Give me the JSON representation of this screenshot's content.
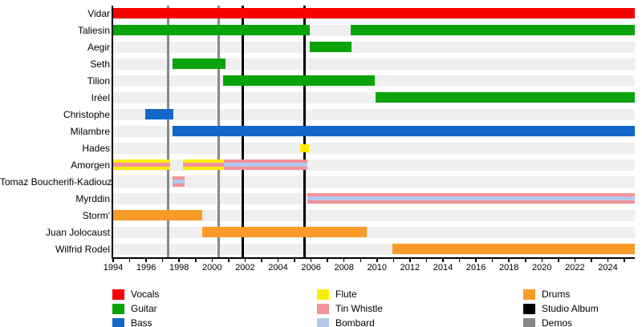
{
  "colors": {
    "vocals": "#f40202",
    "guitar": "#0ba30b",
    "bass": "#1267c9",
    "flute": "#fcee00",
    "tin_whistle": "#f39298",
    "bombard": "#b3c8ef",
    "drums": "#f89b28",
    "studio_album": "#000000",
    "demos": "#888888",
    "row_track": "#efefef",
    "axis": "#000000"
  },
  "chart_data": {
    "type": "timeline",
    "x_axis": {
      "start": 1994,
      "end": 2025.63,
      "tick_every": 1,
      "label_every": 2,
      "labels": [
        "1994",
        "1996",
        "1998",
        "2000",
        "2002",
        "2004",
        "2006",
        "2008",
        "2010",
        "2012",
        "2014",
        "2016",
        "2018",
        "2020",
        "2022",
        "2024"
      ]
    },
    "members": [
      {
        "name": "Vidar",
        "bars": [
          {
            "instruments": [
              "vocals"
            ],
            "from": 1994.0,
            "to": 2025.63
          }
        ]
      },
      {
        "name": "Taliesin",
        "bars": [
          {
            "instruments": [
              "guitar"
            ],
            "from": 1994.0,
            "to": 2005.9
          },
          {
            "instruments": [
              "guitar"
            ],
            "from": 2008.4,
            "to": 2025.63
          }
        ]
      },
      {
        "name": "Aegir",
        "bars": [
          {
            "instruments": [
              "guitar"
            ],
            "from": 2005.9,
            "to": 2008.45
          }
        ]
      },
      {
        "name": "Seth",
        "bars": [
          {
            "instruments": [
              "guitar"
            ],
            "from": 1997.6,
            "to": 2000.8
          }
        ]
      },
      {
        "name": "Tilion",
        "bars": [
          {
            "instruments": [
              "guitar"
            ],
            "from": 2000.65,
            "to": 2009.85
          }
        ]
      },
      {
        "name": "Iréel",
        "bars": [
          {
            "instruments": [
              "guitar"
            ],
            "from": 2009.9,
            "to": 2025.63
          }
        ]
      },
      {
        "name": "Christophe",
        "bars": [
          {
            "instruments": [
              "bass"
            ],
            "from": 1995.95,
            "to": 1997.65
          }
        ]
      },
      {
        "name": "Milambre",
        "bars": [
          {
            "instruments": [
              "bass"
            ],
            "from": 1997.6,
            "to": 2025.63
          }
        ]
      },
      {
        "name": "Hades",
        "bars": [
          {
            "instruments": [
              "flute"
            ],
            "from": 2005.35,
            "to": 2005.85,
            "height": 10
          }
        ]
      },
      {
        "name": "Amorgen",
        "bars": [
          {
            "instruments": [
              "flute",
              "tin_whistle"
            ],
            "from": 1994.0,
            "to": 1997.45
          },
          {
            "instruments": [
              "flute",
              "tin_whistle"
            ],
            "from": 1998.25,
            "to": 2000.7
          },
          {
            "instruments": [
              "tin_whistle",
              "bombard"
            ],
            "from": 2000.7,
            "to": 2005.8
          }
        ]
      },
      {
        "name": "Tomaz Boucherifi-Kadiouz",
        "bars": [
          {
            "instruments": [
              "tin_whistle",
              "bombard"
            ],
            "from": 1997.6,
            "to": 1998.35
          }
        ]
      },
      {
        "name": "Myrddin",
        "bars": [
          {
            "instruments": [
              "tin_whistle",
              "bombard"
            ],
            "from": 2005.8,
            "to": 2025.63
          }
        ]
      },
      {
        "name": "Storm'",
        "bars": [
          {
            "instruments": [
              "drums"
            ],
            "from": 1994.0,
            "to": 1999.4
          }
        ]
      },
      {
        "name": "Juan Jolocaust",
        "bars": [
          {
            "instruments": [
              "drums"
            ],
            "from": 1999.4,
            "to": 2009.4
          }
        ]
      },
      {
        "name": "Wilfrid Rodel",
        "bars": [
          {
            "instruments": [
              "drums"
            ],
            "from": 2010.95,
            "to": 2025.63
          }
        ]
      }
    ],
    "events": [
      {
        "type": "demos",
        "year": 1997.35
      },
      {
        "type": "demos",
        "year": 2000.4
      },
      {
        "type": "studio_album",
        "year": 2001.85
      },
      {
        "type": "studio_album",
        "year": 2005.63
      }
    ],
    "legend": {
      "columns": [
        [
          {
            "key": "vocals",
            "label": "Vocals"
          },
          {
            "key": "guitar",
            "label": "Guitar"
          },
          {
            "key": "bass",
            "label": "Bass"
          }
        ],
        [
          {
            "key": "flute",
            "label": "Flute"
          },
          {
            "key": "tin_whistle",
            "label": "Tin Whistle"
          },
          {
            "key": "bombard",
            "label": "Bombard"
          }
        ],
        [
          {
            "key": "drums",
            "label": "Drums"
          },
          {
            "key": "studio_album",
            "label": "Studio Album"
          },
          {
            "key": "demos",
            "label": "Demos"
          }
        ]
      ]
    }
  }
}
